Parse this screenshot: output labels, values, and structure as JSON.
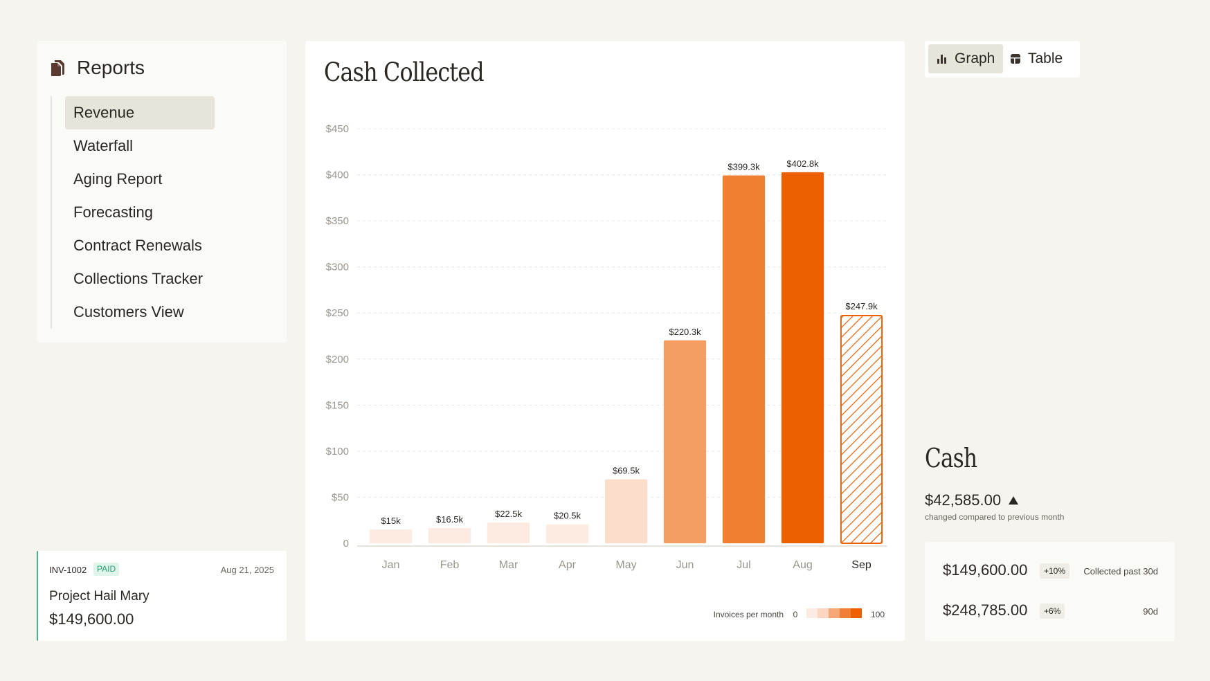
{
  "sidebar": {
    "title": "Reports",
    "items": [
      {
        "label": "Revenue",
        "active": true
      },
      {
        "label": "Waterfall",
        "active": false
      },
      {
        "label": "Aging Report",
        "active": false
      },
      {
        "label": "Forecasting",
        "active": false
      },
      {
        "label": "Contract Renewals",
        "active": false
      },
      {
        "label": "Collections Tracker",
        "active": false
      },
      {
        "label": "Customers View",
        "active": false
      }
    ]
  },
  "invoice": {
    "id": "INV-1002",
    "status": "PAID",
    "date": "Aug 21, 2025",
    "project": "Project Hail Mary",
    "amount": "$149,600.00"
  },
  "view_toggle": {
    "graph_label": "Graph",
    "table_label": "Table",
    "active": "graph"
  },
  "chart_data": {
    "type": "bar",
    "title": "Cash Collected",
    "categories": [
      "Jan",
      "Feb",
      "Mar",
      "Apr",
      "May",
      "Jun",
      "Jul",
      "Aug",
      "Sep"
    ],
    "values": [
      15,
      16.5,
      22.5,
      20.5,
      69.5,
      220.3,
      399.3,
      402.8,
      247.9
    ],
    "data_labels": [
      "$15k",
      "$16.5k",
      "$22.5k",
      "$20.5k",
      "$69.5k",
      "$220.3k",
      "$399.3k",
      "$402.8k",
      "$247.9k"
    ],
    "y_ticks": [
      "0",
      "$50",
      "$100",
      "$150",
      "$200",
      "$250",
      "$300",
      "$350",
      "$400",
      "$450"
    ],
    "ylim": [
      0,
      450
    ],
    "projected_category": "Sep",
    "grid": true,
    "colors": {
      "lightest": "#fdebe2",
      "light": "#fcdcca",
      "medium": "#f59e64",
      "strong": "#f07f32",
      "darkest": "#ee5f00"
    },
    "bar_colors": [
      "#fdebe2",
      "#fdebe2",
      "#fdebe2",
      "#fdebe2",
      "#fcdcca",
      "#f59e64",
      "#f07f32",
      "#ee5f00",
      "#ee5f00"
    ],
    "legend": {
      "label": "Invoices per month",
      "min": "0",
      "max": "100",
      "placement": "bottom-right",
      "steps": [
        "#fdebe2",
        "#fcd6c0",
        "#f6a775",
        "#f08037",
        "#ee5f00"
      ]
    }
  },
  "cash": {
    "title": "Cash",
    "value": "$42,585.00",
    "subtitle": "changed compared to previous month",
    "rows": [
      {
        "amount": "$149,600.00",
        "change": "+10%",
        "label": "Collected past 30d"
      },
      {
        "amount": "$248,785.00",
        "change": "+6%",
        "label": "90d"
      }
    ]
  }
}
